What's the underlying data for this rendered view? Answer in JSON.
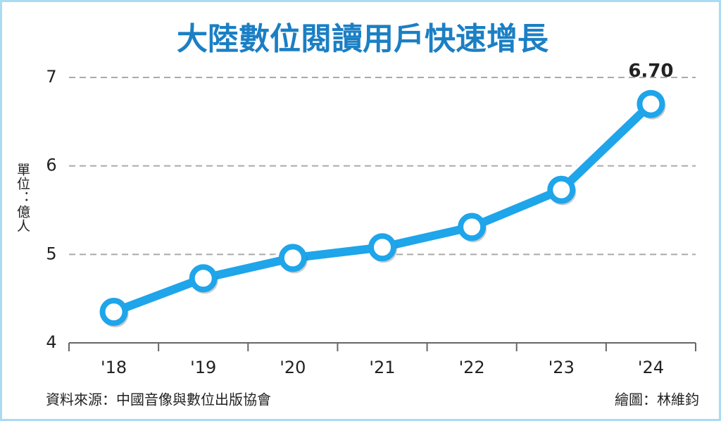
{
  "chart_data": {
    "type": "line",
    "title": "大陸數位閱讀用戶快速增長",
    "y_label": "單位：億人",
    "categories": [
      "'18",
      "'19",
      "'20",
      "'21",
      "'22",
      "'23",
      "'24"
    ],
    "values": [
      4.35,
      4.73,
      4.96,
      5.08,
      5.31,
      5.73,
      6.7
    ],
    "value_labels": [
      null,
      null,
      null,
      null,
      null,
      null,
      "6.70"
    ],
    "color": "#1ea5ea",
    "ylim": [
      4,
      7
    ],
    "yticks": [
      4,
      5,
      6,
      7
    ],
    "grid": true,
    "source": "資料來源：中國音像與數位出版協會",
    "credit": "繪圖：林維鈞"
  }
}
